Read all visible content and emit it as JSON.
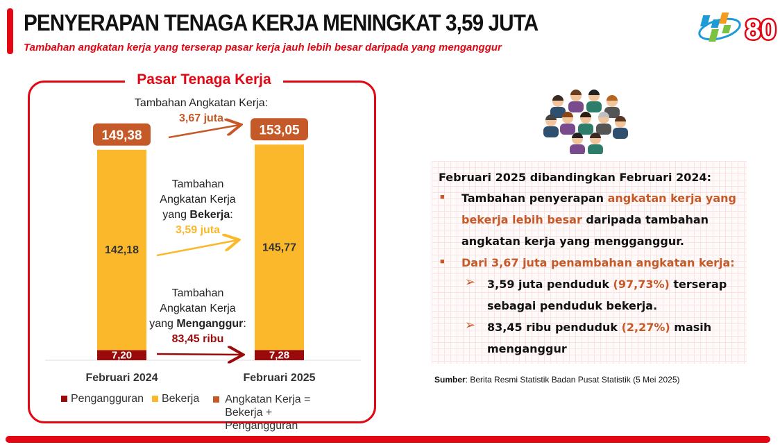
{
  "header": {
    "title": "PENYERAPAN TENAGA KERJA MENINGKAT 3,59 JUTA",
    "subtitle": "Tambahan angkatan kerja yang terserap pasar kerja jauh lebih besar daripada yang menganggur",
    "logos": [
      "bps-logo",
      "80-anniversary-logo"
    ]
  },
  "colors": {
    "accent": "#e30613",
    "angkatan_kerja": "#c55a28",
    "bekerja": "#fbb82a",
    "pengangguran": "#9b0a0a"
  },
  "chart_data": {
    "type": "bar",
    "stacked": true,
    "title": "Pasar Tenaga Kerja",
    "categories": [
      "Februari 2024",
      "Februari 2025"
    ],
    "series": [
      {
        "name": "Pengangguran",
        "values": [
          7.2,
          7.28
        ],
        "labels": [
          "7,20",
          "7,28"
        ]
      },
      {
        "name": "Bekerja",
        "values": [
          142.18,
          145.77
        ],
        "labels": [
          "142,18",
          "145,77"
        ]
      }
    ],
    "totals": {
      "name": "Angkatan Kerja = Bekerja + Pengangguran",
      "values": [
        149.38,
        153.05
      ],
      "labels": [
        "149,38",
        "153,05"
      ]
    },
    "legend": [
      "Pengangguran",
      "Bekerja",
      "Angkatan Kerja = Bekerja + Pengangguran"
    ],
    "legend_placement": "bottom",
    "annotations": {
      "total": {
        "label": "Tambahan Angkatan Kerja:",
        "value": "3,67 juta"
      },
      "bekerja": {
        "l1": "Tambahan",
        "l2": "Angkatan Kerja",
        "l3": "yang ",
        "bold": "Bekerja",
        "colon": ":",
        "value": "3,59 juta"
      },
      "menganggur": {
        "l1": "Tambahan",
        "l2": "Angkatan Kerja",
        "l3": "yang ",
        "bold": "Menganggur",
        "colon": ":",
        "value": "83,45 ribu"
      }
    }
  },
  "summary": {
    "heading": "Februari 2025 dibandingkan Februari 2024:",
    "b1": [
      "Tambahan penyerapan ",
      "angkatan kerja yang bekerja lebih besar",
      " daripada tambahan angkatan kerja yang mengganggur."
    ],
    "b2": "Dari 3,67 juta penambahan angkatan kerja:",
    "s1": [
      "3,59 juta penduduk ",
      "(97,73%)",
      " terserap sebagai penduduk bekerja."
    ],
    "s2": [
      "83,45 ribu penduduk ",
      "(2,27%)",
      " masih menganggur"
    ]
  },
  "source": {
    "label": "Sumber",
    "text": ": Berita Resmi Statistik Badan Pusat Statistik (5 Mei 2025)"
  }
}
